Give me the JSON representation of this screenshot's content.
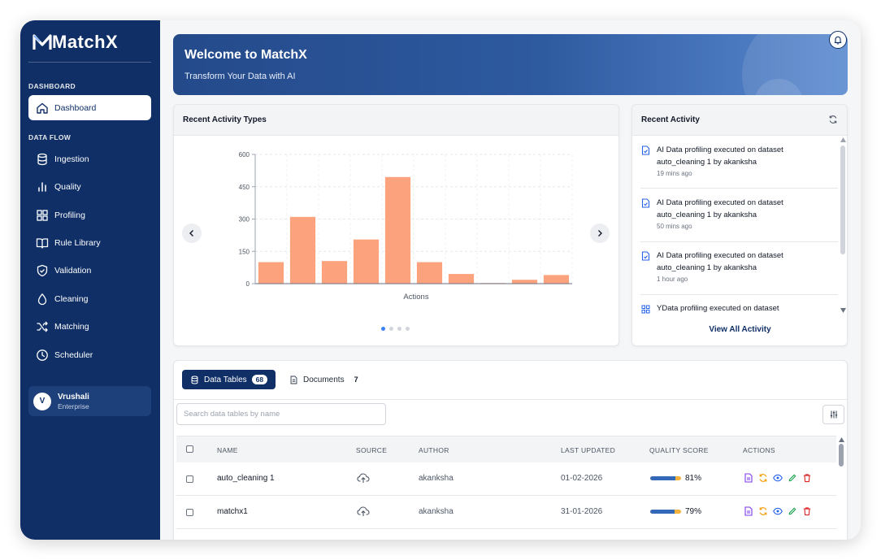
{
  "app": {
    "name": "MatchX"
  },
  "sidebar": {
    "dashboard_label": "DASHBOARD",
    "dataflow_label": "DATA FLOW",
    "dashboard_item": "Dashboard",
    "items": [
      {
        "label": "Ingestion",
        "icon": "database-icon"
      },
      {
        "label": "Quality",
        "icon": "bar-chart-icon"
      },
      {
        "label": "Profiling",
        "icon": "grid-icon"
      },
      {
        "label": "Rule Library",
        "icon": "book-icon"
      },
      {
        "label": "Validation",
        "icon": "shield-check-icon"
      },
      {
        "label": "Cleaning",
        "icon": "droplet-icon"
      },
      {
        "label": "Matching",
        "icon": "shuffle-icon"
      },
      {
        "label": "Scheduler",
        "icon": "clock-icon"
      }
    ],
    "user": {
      "initial": "V",
      "name": "Vrushali",
      "plan": "Enterprise"
    }
  },
  "banner": {
    "title": "Welcome to MatchX",
    "subtitle": "Transform Your Data with AI"
  },
  "activity_types": {
    "title": "Recent Activity Types",
    "chart_data": {
      "type": "bar",
      "xlabel": "Actions",
      "ylabel": "",
      "ylim": [
        0,
        600
      ],
      "yticks": [
        "0",
        "150",
        "300",
        "450",
        "600"
      ],
      "categories": [
        "",
        "",
        "",
        "",
        "",
        "",
        "",
        "",
        "",
        ""
      ],
      "values": [
        100,
        310,
        105,
        205,
        495,
        100,
        45,
        3,
        18,
        40
      ],
      "color": "#fca27c",
      "grid": true
    },
    "page_count": 4,
    "active_page": 0
  },
  "recent_activity": {
    "title": "Recent Activity",
    "items": [
      {
        "line1": "AI Data profiling executed on dataset",
        "line2": "auto_cleaning 1 by akanksha",
        "time": "19 mins ago"
      },
      {
        "line1": "AI Data profiling executed on dataset",
        "line2": "auto_cleaning 1 by akanksha",
        "time": "50 mins ago"
      },
      {
        "line1": "AI Data profiling executed on dataset",
        "line2": "auto_cleaning 1 by akanksha",
        "time": "1 hour ago"
      },
      {
        "line1": "YData profiling executed on dataset",
        "line2": "",
        "time": ""
      }
    ],
    "view_all": "View All Activity"
  },
  "tables": {
    "tab_data": "Data Tables",
    "tab_data_count": "68",
    "tab_docs": "Documents",
    "tab_docs_count": "7",
    "search_placeholder": "Search data tables by name",
    "columns": [
      "NAME",
      "SOURCE",
      "AUTHOR",
      "LAST UPDATED",
      "QUALITY SCORE",
      "ACTIONS"
    ],
    "rows": [
      {
        "name": "auto_cleaning 1",
        "author": "akanksha",
        "updated": "01-02-2026",
        "score": "81%",
        "score_value": 81
      },
      {
        "name": "matchx1",
        "author": "akanksha",
        "updated": "31-01-2026",
        "score": "79%",
        "score_value": 79
      }
    ]
  },
  "colors": {
    "sidebar": "#0f2f66",
    "bar": "#fca27c",
    "accent": "#3b82f6"
  }
}
